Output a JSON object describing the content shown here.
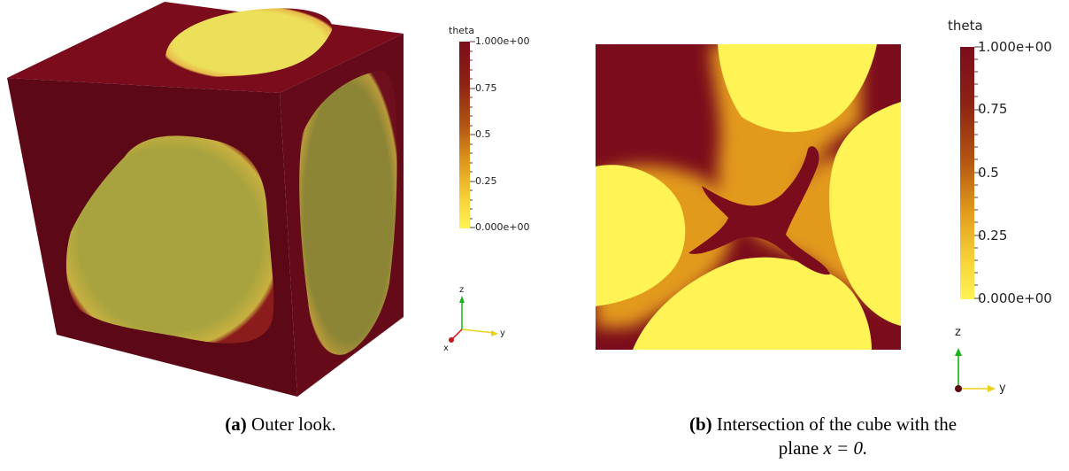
{
  "figure_a": {
    "caption_label": "(a)",
    "caption_text": "Outer look.",
    "legend": {
      "title": "theta",
      "ticks": [
        "1.000e+00",
        "0.75",
        "0.5",
        "0.25",
        "0.000e+00"
      ]
    },
    "axes": {
      "z": "z",
      "y": "y",
      "x": "x"
    }
  },
  "figure_b": {
    "caption_label": "(b)",
    "caption_line1": "Intersection of the cube with the",
    "caption_line2_prefix": "plane ",
    "caption_math": "x = 0.",
    "legend": {
      "title": "theta",
      "ticks": [
        "1.000e+00",
        "0.75",
        "0.5",
        "0.25",
        "0.000e+00"
      ]
    },
    "axes": {
      "z": "z",
      "y": "y"
    }
  },
  "colors": {
    "high": "#7b0c1c",
    "low": "#fff355",
    "mid": "#e09a1c"
  }
}
